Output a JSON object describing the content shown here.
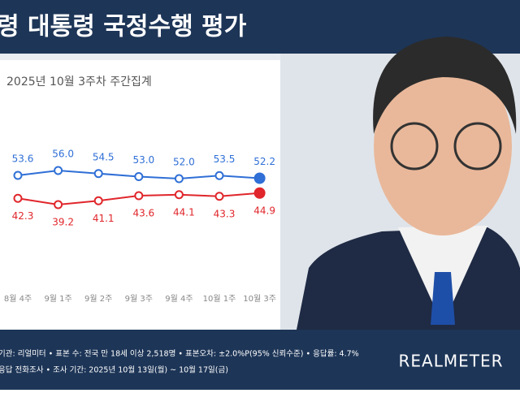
{
  "chart_data": {
    "type": "line",
    "title": "령 대통령 국정수행 평가",
    "subtitle": "2025년 10월 3주차 주간집계",
    "categories": [
      "8월 4주",
      "9월 1주",
      "9월 2주",
      "9월 3주",
      "9월 4주",
      "10월 1주",
      "10월 3주"
    ],
    "series": [
      {
        "color": "#2f6fd6",
        "values": [
          53.6,
          56.0,
          54.5,
          53.0,
          52.0,
          53.5,
          52.2
        ],
        "value_labels": [
          "53.6",
          "56.0",
          "54.5",
          "53.0",
          "52.0",
          "53.5",
          "52.2"
        ]
      },
      {
        "color": "#e0262b",
        "values": [
          42.3,
          39.2,
          41.1,
          43.6,
          44.1,
          43.3,
          44.9
        ],
        "value_labels": [
          "42.3",
          "39.2",
          "41.1",
          "43.6",
          "44.1",
          "43.3",
          "44.9"
        ]
      }
    ],
    "footer": [
      "기관: 리얼미터 • 표본 수: 전국 만 18세 이상 2,518명 • 표본오차: ±2.0%P(95% 신뢰수준) • 응답률: 4.7%",
      "응답 전화조사 • 조사 기간: 2025년 10월 13일(월) ~ 10월 17일(금)"
    ],
    "brand": "REALMETER"
  }
}
